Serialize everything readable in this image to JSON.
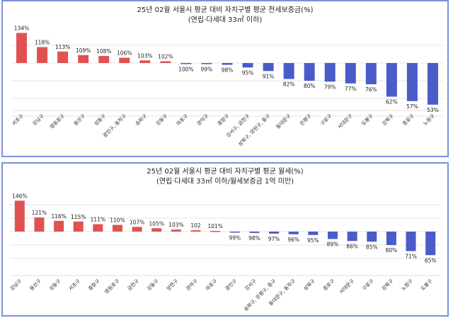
{
  "chart_data": [
    {
      "type": "bar",
      "title": "25년 02월 서울시 평균 대비 자치구별 평균 전세보증금(%)",
      "subtitle": "(연립·다세대 33㎡ 이하)",
      "categories": [
        "서초구",
        "강남구",
        "영등포구",
        "용산구",
        "성동구",
        "광진구, 동작구",
        "송파구",
        "강동구",
        "마포구",
        "관악구",
        "중랑구",
        "강서구, 금천구",
        "성북구, 양천구, 중구",
        "동대문구",
        "은평구",
        "구로구",
        "서대문구",
        "도봉구",
        "강북구",
        "종로구",
        "노원구"
      ],
      "values": [
        134,
        118,
        113,
        109,
        108,
        106,
        103,
        102,
        100,
        99,
        98,
        95,
        91,
        82,
        80,
        79,
        77,
        76,
        62,
        57,
        53
      ],
      "labels": [
        "134%",
        "118%",
        "113%",
        "109%",
        "108%",
        "106%",
        "103%",
        "102%",
        "100%",
        "99%",
        "98%",
        "95%",
        "91%",
        "82%",
        "80%",
        "79%",
        "77%",
        "76%",
        "62%",
        "57%",
        "53%"
      ],
      "baseline": 100,
      "ylim": [
        40,
        140
      ],
      "grid": true,
      "colors": {
        "above": "#e05252",
        "below": "#4a5cc8"
      }
    },
    {
      "type": "bar",
      "title": "25년 02월 서울시 평균 대비 자치구별 평균 월세(%)",
      "subtitle": "(연립·다세대 33㎡ 이하/월세보증금 1억 미만)",
      "categories": [
        "강남구",
        "용산구",
        "성동구",
        "서초구",
        "중랑구",
        "영등포구",
        "금천구",
        "강동구",
        "양천구",
        "관악구",
        "마포구",
        "광진구",
        "강서구",
        "송파구, 은평구, 중구",
        "동대문구, 동작구",
        "성북구",
        "종로구",
        "서대문구",
        "구로구",
        "강북구",
        "노원구",
        "도봉구"
      ],
      "values": [
        146,
        121,
        116,
        115,
        111,
        110,
        107,
        105,
        103,
        102,
        101,
        99,
        98,
        97,
        96,
        95,
        89,
        86,
        85,
        80,
        71,
        65
      ],
      "labels": [
        "146%",
        "121%",
        "116%",
        "115%",
        "111%",
        "110%",
        "107%",
        "105%",
        "103%",
        "102",
        "101%",
        "99%",
        "98%",
        "97%",
        "96%",
        "95%",
        "89%",
        "86%",
        "85%",
        "80%",
        "71%",
        "65%"
      ],
      "baseline": 100,
      "ylim": [
        60,
        150
      ],
      "grid": true,
      "colors": {
        "above": "#e05252",
        "below": "#4a5cc8"
      }
    }
  ]
}
